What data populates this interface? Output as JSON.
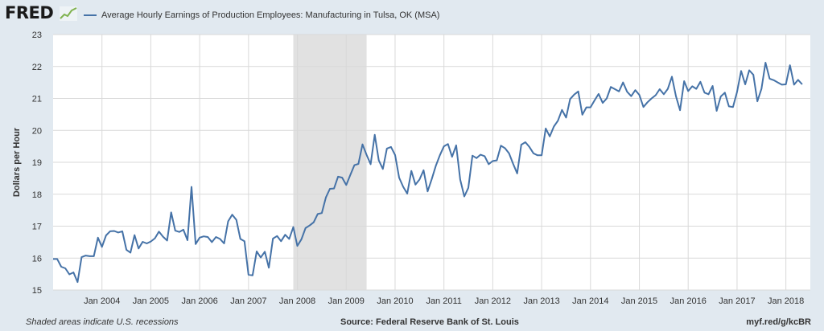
{
  "header": {
    "logo_text": "FRED",
    "logo_icon": "trend-graph-icon"
  },
  "chart_data": {
    "type": "line",
    "title": "Average Hourly Earnings of Production Employees: Manufacturing in Tulsa, OK (MSA)",
    "ylabel": "Dollars per Hour",
    "xlabel": "",
    "ylim": [
      15,
      23
    ],
    "xlim": [
      "2003-01",
      "2018-07"
    ],
    "yticks": [
      "15",
      "16",
      "17",
      "18",
      "19",
      "20",
      "21",
      "22",
      "23"
    ],
    "xticks": [
      "Jan 2004",
      "Jan 2005",
      "Jan 2006",
      "Jan 2007",
      "Jan 2008",
      "Jan 2009",
      "Jan 2010",
      "Jan 2011",
      "Jan 2012",
      "Jan 2013",
      "Jan 2014",
      "Jan 2015",
      "Jan 2016",
      "Jan 2017",
      "Jan 2018"
    ],
    "grid": true,
    "color": "#4572a7",
    "recessions": [
      {
        "start": "2007-12",
        "end": "2009-06"
      }
    ],
    "series": [
      {
        "name": "Average Hourly Earnings of Production Employees: Manufacturing in Tulsa, OK (MSA)",
        "start": "2003-01",
        "frequency": "monthly",
        "values": [
          15.97,
          15.97,
          15.73,
          15.68,
          15.49,
          15.55,
          15.25,
          16.03,
          16.08,
          16.06,
          16.06,
          16.64,
          16.35,
          16.71,
          16.84,
          16.85,
          16.8,
          16.84,
          16.26,
          16.17,
          16.72,
          16.3,
          16.51,
          16.46,
          16.52,
          16.62,
          16.83,
          16.67,
          16.55,
          17.43,
          16.86,
          16.82,
          16.89,
          16.56,
          18.23,
          16.44,
          16.64,
          16.68,
          16.66,
          16.5,
          16.66,
          16.6,
          16.46,
          17.15,
          17.36,
          17.2,
          16.6,
          16.53,
          15.48,
          15.46,
          16.21,
          16.02,
          16.2,
          15.7,
          16.61,
          16.69,
          16.53,
          16.73,
          16.6,
          16.97,
          16.38,
          16.59,
          16.94,
          17.02,
          17.12,
          17.38,
          17.41,
          17.9,
          18.17,
          18.18,
          18.55,
          18.52,
          18.29,
          18.6,
          18.91,
          18.95,
          19.56,
          19.23,
          18.94,
          19.86,
          19.06,
          18.79,
          19.43,
          19.48,
          19.23,
          18.52,
          18.23,
          18.02,
          18.73,
          18.3,
          18.46,
          18.75,
          18.09,
          18.47,
          18.89,
          19.22,
          19.5,
          19.57,
          19.17,
          19.53,
          18.46,
          17.93,
          18.2,
          19.21,
          19.13,
          19.24,
          19.19,
          18.94,
          19.04,
          19.06,
          19.52,
          19.44,
          19.28,
          18.95,
          18.65,
          19.55,
          19.63,
          19.48,
          19.28,
          19.22,
          19.22,
          20.06,
          19.81,
          20.12,
          20.3,
          20.64,
          20.4,
          20.98,
          21.12,
          21.22,
          20.49,
          20.72,
          20.72,
          20.94,
          21.14,
          20.86,
          21.0,
          21.36,
          21.29,
          21.22,
          21.5,
          21.21,
          21.07,
          21.26,
          21.11,
          20.73,
          20.88,
          21.0,
          21.1,
          21.29,
          21.13,
          21.3,
          21.68,
          21.07,
          20.63,
          21.54,
          21.23,
          21.38,
          21.3,
          21.52,
          21.18,
          21.13,
          21.39,
          20.61,
          21.06,
          21.18,
          20.75,
          20.73,
          21.2,
          21.86,
          21.44,
          21.88,
          21.74,
          20.91,
          21.3,
          22.12,
          21.62,
          21.57,
          21.5,
          21.43,
          21.44,
          22.04,
          21.43,
          21.58,
          21.44
        ]
      }
    ]
  },
  "footer": {
    "note": "Shaded areas indicate U.S. recessions",
    "source": "Source: Federal Reserve Bank of St. Louis",
    "url": "myf.red/g/kcBR"
  }
}
